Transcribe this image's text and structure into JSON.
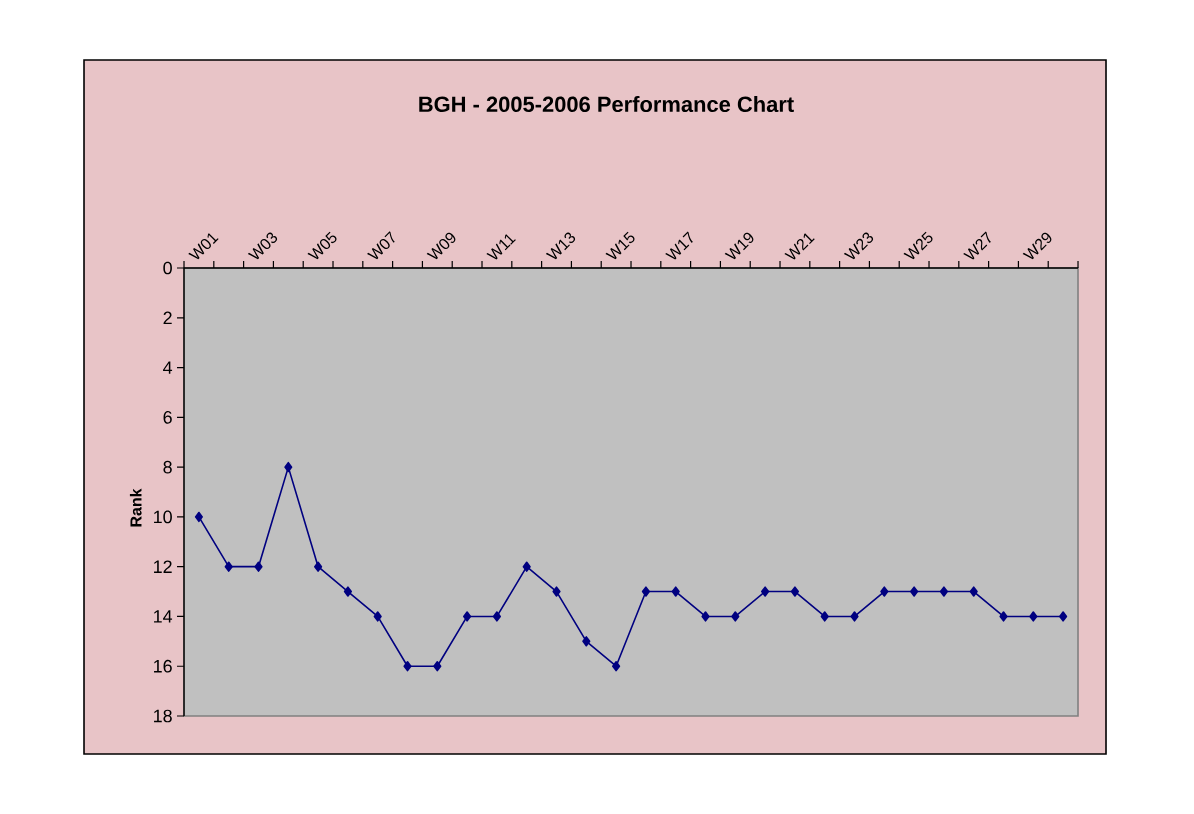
{
  "chart_data": {
    "type": "line",
    "title": "BGH - 2005-2006 Performance Chart",
    "ylabel": "Rank",
    "categories": [
      "W01",
      null,
      "W03",
      null,
      "W05",
      null,
      "W07",
      null,
      "W09",
      null,
      "W11",
      null,
      "W13",
      null,
      "W15",
      null,
      "W17",
      null,
      "W19",
      null,
      "W21",
      null,
      "W23",
      null,
      "W25",
      null,
      "W27",
      null,
      "W29",
      null
    ],
    "values": [
      10,
      12,
      12,
      8,
      12,
      13,
      14,
      16,
      16,
      14,
      14,
      12,
      13,
      15,
      16,
      13,
      13,
      14,
      14,
      13,
      13,
      14,
      14,
      13,
      13,
      13,
      13,
      14,
      14,
      14
    ],
    "color": "#000080",
    "marker": "diamond",
    "line_style": "solid",
    "ylim": [
      18,
      0
    ],
    "yticks": [
      0,
      2,
      4,
      6,
      8,
      10,
      12,
      14,
      16,
      18
    ]
  }
}
